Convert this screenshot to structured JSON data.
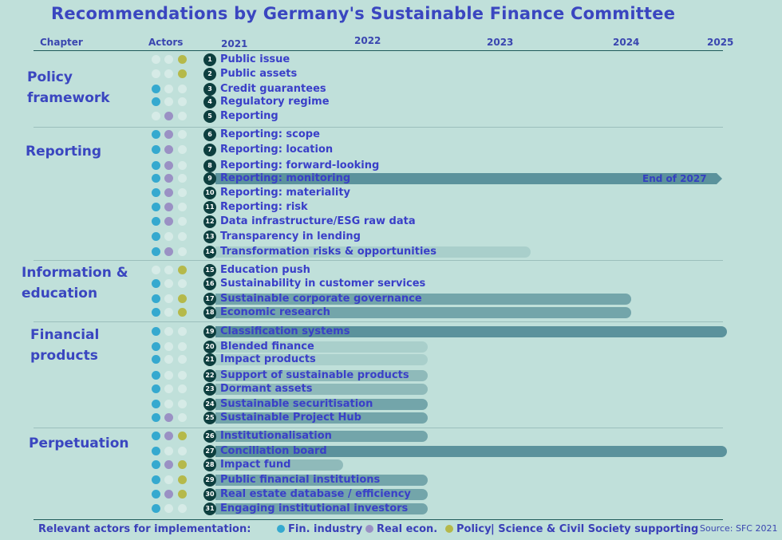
{
  "title": "Recommendations by Germany's Sustainable Finance Committee",
  "header": {
    "chapter": "Chapter",
    "actors": "Actors",
    "years": [
      "2021",
      "2022",
      "2023",
      "2024",
      "2025"
    ]
  },
  "colors": {
    "background": "#c0e0da",
    "fin_industry": "#35a9cf",
    "real_econ": "#9a91c4",
    "policy": "#b5b94a",
    "inactive_dot": "#d6ebe7",
    "bar_dark": "#5b929c",
    "bar_mid": "#73a5aa",
    "bar_light": "#a9cfcb",
    "number_badge": "#0d3f3f",
    "text": "#3a3fc8"
  },
  "chapters": [
    {
      "name": "Policy framework",
      "line1": "Policy",
      "line2": "framework"
    },
    {
      "name": "Reporting",
      "line1": "Reporting",
      "line2": ""
    },
    {
      "name": "Information & education",
      "line1": "Information &",
      "line2": "education"
    },
    {
      "name": "Financial products",
      "line1": "Financial",
      "line2": "products"
    },
    {
      "name": "Perpetuation",
      "line1": "Perpetuation",
      "line2": ""
    }
  ],
  "items": [
    {
      "n": "1",
      "label": "Public issue",
      "chapter": "Policy framework",
      "fin": false,
      "real": false,
      "pol": true,
      "bar_end": null
    },
    {
      "n": "2",
      "label": "Public assets",
      "chapter": "Policy framework",
      "fin": false,
      "real": false,
      "pol": true,
      "bar_end": null
    },
    {
      "n": "3",
      "label": "Credit guarantees",
      "chapter": "Policy framework",
      "fin": true,
      "real": false,
      "pol": false,
      "bar_end": null
    },
    {
      "n": "4",
      "label": "Regulatory regime",
      "chapter": "Policy framework",
      "fin": true,
      "real": false,
      "pol": false,
      "bar_end": null
    },
    {
      "n": "5",
      "label": "Reporting",
      "chapter": "Policy framework",
      "fin": false,
      "real": true,
      "pol": false,
      "bar_end": null
    },
    {
      "n": "6",
      "label": "Reporting: scope",
      "chapter": "Reporting",
      "fin": true,
      "real": true,
      "pol": false,
      "bar_end": null
    },
    {
      "n": "7",
      "label": "Reporting: location",
      "chapter": "Reporting",
      "fin": true,
      "real": true,
      "pol": false,
      "bar_end": null
    },
    {
      "n": "8",
      "label": "Reporting: forward-looking",
      "chapter": "Reporting",
      "fin": true,
      "real": true,
      "pol": false,
      "bar_end": null
    },
    {
      "n": "9",
      "label": "Reporting: monitoring",
      "chapter": "Reporting",
      "fin": true,
      "real": true,
      "pol": false,
      "bar_end": "End of 2027",
      "note": "End of 2027"
    },
    {
      "n": "10",
      "label": "Reporting: materiality",
      "chapter": "Reporting",
      "fin": true,
      "real": true,
      "pol": false,
      "bar_end": null
    },
    {
      "n": "11",
      "label": "Reporting: risk",
      "chapter": "Reporting",
      "fin": true,
      "real": true,
      "pol": false,
      "bar_end": null
    },
    {
      "n": "12",
      "label": "Data infrastructure/ESG raw data",
      "chapter": "Reporting",
      "fin": true,
      "real": true,
      "pol": false,
      "bar_end": null
    },
    {
      "n": "13",
      "label": "Transparency in lending",
      "chapter": "Reporting",
      "fin": true,
      "real": false,
      "pol": false,
      "bar_end": null
    },
    {
      "n": "14",
      "label": "Transformation risks & opportunities",
      "chapter": "Reporting",
      "fin": true,
      "real": true,
      "pol": false,
      "bar_end": "mid-2023"
    },
    {
      "n": "15",
      "label": "Education push",
      "chapter": "Information & education",
      "fin": false,
      "real": false,
      "pol": true,
      "bar_end": null
    },
    {
      "n": "16",
      "label": "Sustainability in customer services",
      "chapter": "Information & education",
      "fin": true,
      "real": false,
      "pol": false,
      "bar_end": null
    },
    {
      "n": "17",
      "label": "Sustainable corporate governance",
      "chapter": "Information & education",
      "fin": true,
      "real": false,
      "pol": true,
      "bar_end": "2024"
    },
    {
      "n": "18",
      "label": "Economic research",
      "chapter": "Information & education",
      "fin": true,
      "real": false,
      "pol": true,
      "bar_end": "2024"
    },
    {
      "n": "19",
      "label": "Classification systems",
      "chapter": "Financial products",
      "fin": true,
      "real": false,
      "pol": false,
      "bar_end": "2025"
    },
    {
      "n": "20",
      "label": "Blended finance",
      "chapter": "Financial products",
      "fin": true,
      "real": false,
      "pol": false,
      "bar_end": "2022"
    },
    {
      "n": "21",
      "label": "Impact products",
      "chapter": "Financial products",
      "fin": true,
      "real": false,
      "pol": false,
      "bar_end": "2022"
    },
    {
      "n": "22",
      "label": "Support of sustainable products",
      "chapter": "Financial products",
      "fin": true,
      "real": false,
      "pol": false,
      "bar_end": "2022"
    },
    {
      "n": "23",
      "label": "Dormant assets",
      "chapter": "Financial products",
      "fin": true,
      "real": false,
      "pol": false,
      "bar_end": "2022"
    },
    {
      "n": "24",
      "label": "Sustainable securitisation",
      "chapter": "Financial products",
      "fin": true,
      "real": false,
      "pol": false,
      "bar_end": "2022"
    },
    {
      "n": "25",
      "label": "Sustainable Project Hub",
      "chapter": "Financial products",
      "fin": true,
      "real": true,
      "pol": false,
      "bar_end": "2022"
    },
    {
      "n": "26",
      "label": "Institutionalisation",
      "chapter": "Perpetuation",
      "fin": true,
      "real": true,
      "pol": true,
      "bar_end": "2022"
    },
    {
      "n": "27",
      "label": "Conciliation board",
      "chapter": "Perpetuation",
      "fin": true,
      "real": false,
      "pol": false,
      "bar_end": "2025"
    },
    {
      "n": "28",
      "label": "Impact fund",
      "chapter": "Perpetuation",
      "fin": true,
      "real": true,
      "pol": true,
      "bar_end": "mid-2021"
    },
    {
      "n": "29",
      "label": "Public financial institutions",
      "chapter": "Perpetuation",
      "fin": true,
      "real": false,
      "pol": true,
      "bar_end": "2022"
    },
    {
      "n": "30",
      "label": "Real estate database / efficiency",
      "chapter": "Perpetuation",
      "fin": true,
      "real": true,
      "pol": true,
      "bar_end": "2022"
    },
    {
      "n": "31",
      "label": "Engaging institutional investors",
      "chapter": "Perpetuation",
      "fin": true,
      "real": false,
      "pol": false,
      "bar_end": "2022"
    }
  ],
  "legend": {
    "prefix": "Relevant actors for implementation:",
    "fin": "Fin. industry",
    "real": "Real econ.",
    "pol": "Policy",
    "suffix": "| Science & Civil Society supporting"
  },
  "source": "Source: SFC 2021",
  "chart_data": {
    "type": "gantt",
    "title": "Recommendations by Germany's Sustainable Finance Committee",
    "xlabel": "Year",
    "x_ticks": [
      "2021",
      "2022",
      "2023",
      "2024",
      "2025"
    ],
    "series": [
      {
        "name": "Classification systems",
        "end": 2025.0
      },
      {
        "name": "Conciliation board",
        "end": 2025.0
      },
      {
        "name": "Reporting: monitoring",
        "end": "End of 2027"
      },
      {
        "name": "Sustainable corporate governance",
        "end": 2024.0
      },
      {
        "name": "Economic research",
        "end": 2024.0
      },
      {
        "name": "Transformation risks & opportunities",
        "end": 2023.1
      },
      {
        "name": "Blended finance",
        "end": 2022.0
      },
      {
        "name": "Impact products",
        "end": 2022.0
      },
      {
        "name": "Support of sustainable products",
        "end": 2022.0
      },
      {
        "name": "Dormant assets",
        "end": 2022.0
      },
      {
        "name": "Sustainable securitisation",
        "end": 2022.0
      },
      {
        "name": "Sustainable Project Hub",
        "end": 2022.0
      },
      {
        "name": "Institutionalisation",
        "end": 2022.0
      },
      {
        "name": "Impact fund",
        "end": 2021.6
      },
      {
        "name": "Public financial institutions",
        "end": 2022.0
      },
      {
        "name": "Real estate database / efficiency",
        "end": 2022.0
      },
      {
        "name": "Engaging institutional investors",
        "end": 2022.0
      }
    ],
    "legend": [
      "Fin. industry",
      "Real econ.",
      "Policy"
    ],
    "legend_position": "bottom"
  }
}
